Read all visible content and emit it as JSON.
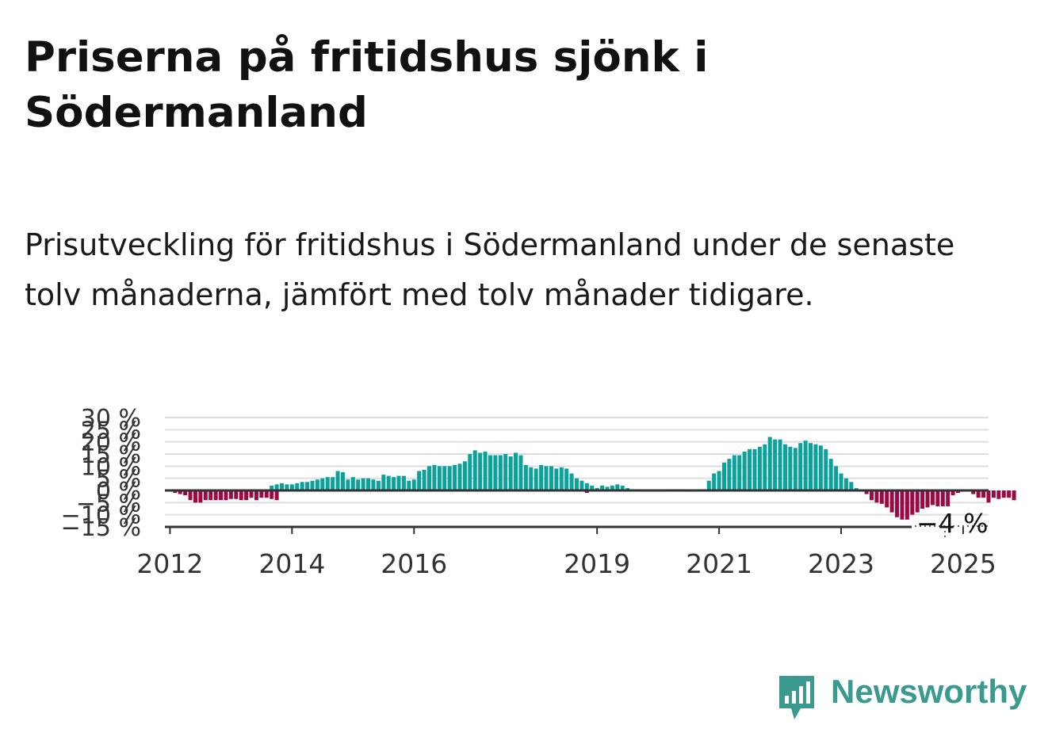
{
  "title": "Priserna på fritidshus sjönk i Södermanland",
  "subtitle": "Prisutveckling för fritidshus i Södermanland under de senaste tolv månaderna, jämfört med tolv månader tidigare.",
  "logo_text": "Newsworthy",
  "colors": {
    "positive": "#0aa29a",
    "negative": "#9c0a45",
    "grid": "#dddddd",
    "axis": "#333333",
    "logo": "#3a9a8f"
  },
  "chart_data": {
    "type": "bar",
    "x_start": "2011-12",
    "x_end": "2025-06",
    "xticks": [
      "2012",
      "2014",
      "2016",
      "2019",
      "2021",
      "2023",
      "2025"
    ],
    "yticks": [
      "30 %",
      "25 %",
      "20 %",
      "15 %",
      "10 %",
      "5 %",
      "0 %",
      "−5 %",
      "−10 %",
      "−15 %"
    ],
    "ylim": [
      -15,
      30
    ],
    "grid": true,
    "annotation": "−4 %",
    "series": [
      {
        "start": "2012-01",
        "values": [
          0,
          -1,
          -1.5,
          -2,
          -4,
          -5,
          -5,
          -4,
          -4,
          -4,
          -4,
          -4,
          -3.5,
          -3.5,
          -4,
          -4,
          -3,
          -4,
          -3,
          -3,
          -3.5,
          -4,
          -0.5,
          0,
          0,
          0,
          0,
          0,
          0,
          0,
          0,
          0,
          0,
          0,
          0,
          0
        ]
      },
      {
        "start": "2013-09",
        "values": [
          2,
          2.5,
          3,
          2.5,
          2.5,
          3,
          3.5,
          3.5,
          4,
          4.5,
          5,
          5.5,
          5.5,
          8,
          7.5,
          4.5,
          5.5,
          4.5,
          5,
          5,
          4.5,
          4,
          6.5,
          6,
          5.5,
          6,
          6,
          4,
          4.5,
          8,
          8.5,
          10,
          10.5,
          10,
          10,
          10,
          10.5,
          11,
          12,
          15,
          16.5,
          15.5,
          16,
          14.5,
          14.5,
          14.5,
          15,
          14,
          15.5,
          14.5,
          10.5,
          9.5,
          9,
          10.5,
          10,
          10,
          9,
          9.5,
          9,
          7,
          5,
          4,
          3,
          2,
          1
        ]
      },
      {
        "start": "2018-11",
        "values": [
          -1,
          0.5,
          1,
          2,
          1.5,
          2,
          2.5,
          2,
          1,
          0.5,
          0.5,
          0,
          0,
          0,
          0,
          0,
          0,
          0.5,
          0.5,
          0.5,
          0,
          0,
          0,
          0.5,
          4,
          7,
          8,
          11.5,
          13,
          14.5,
          14.5,
          16,
          17,
          17,
          18,
          19,
          22,
          21,
          21,
          19,
          18,
          17.5,
          19.5,
          20.5,
          19.5,
          19,
          18.5,
          17,
          13,
          10,
          7,
          5,
          3.5,
          1,
          -0.5,
          -1.5,
          -4,
          -5,
          -5.5,
          -7,
          -9,
          -11,
          -12,
          -12,
          -10,
          -9,
          -7.5,
          -7,
          -6,
          -6.5,
          -6.5,
          -6.5,
          -2,
          -1,
          0,
          0,
          -1.5,
          -3,
          -3,
          -5,
          -3,
          -3.5,
          -3,
          -3,
          -4
        ]
      }
    ]
  }
}
